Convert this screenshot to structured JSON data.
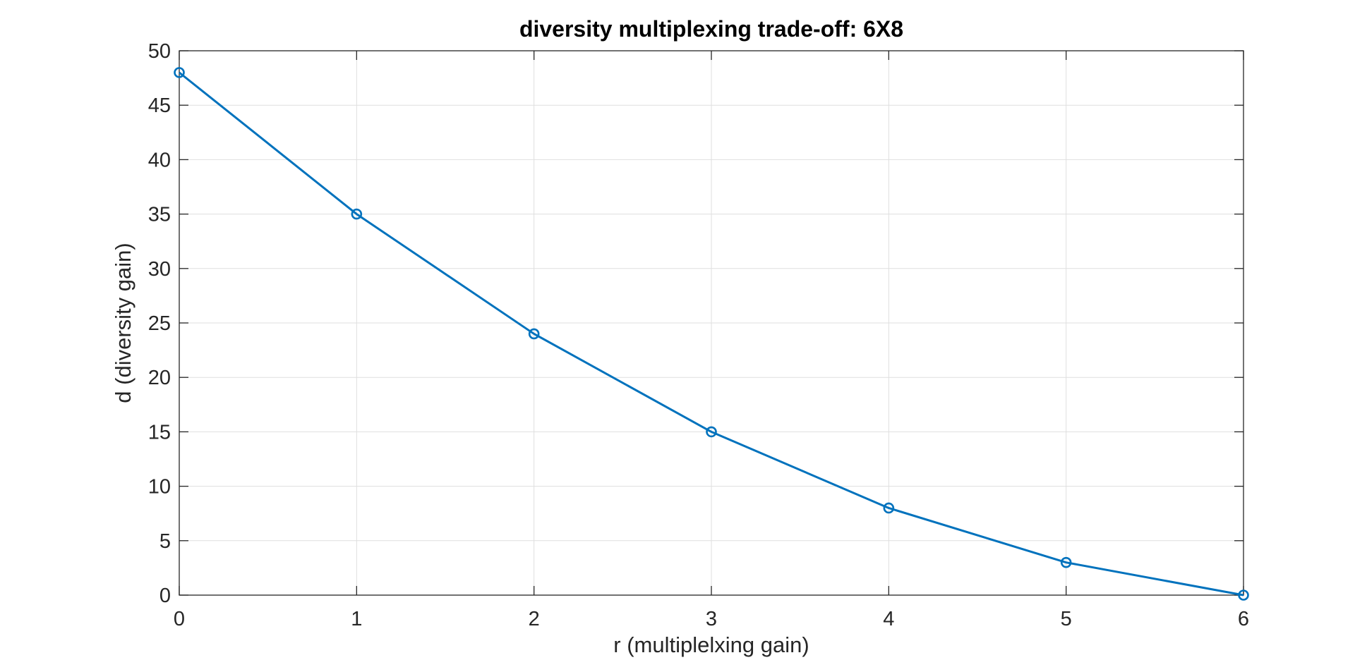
{
  "chart_data": {
    "type": "line",
    "title": "diversity multiplexing trade-off: 6X8",
    "xlabel": "r (multiplelxing gain)",
    "ylabel": "d (diversity gain)",
    "xlim": [
      0,
      6
    ],
    "ylim": [
      0,
      50
    ],
    "xticks": [
      0,
      1,
      2,
      3,
      4,
      5,
      6
    ],
    "yticks": [
      0,
      5,
      10,
      15,
      20,
      25,
      30,
      35,
      40,
      45,
      50
    ],
    "grid": true,
    "marker": "circle",
    "series": [
      {
        "x": [
          0,
          1,
          2,
          3,
          4,
          5,
          6
        ],
        "y": [
          48,
          35,
          24,
          15,
          8,
          3,
          0
        ],
        "color": "#0072BD"
      }
    ]
  }
}
